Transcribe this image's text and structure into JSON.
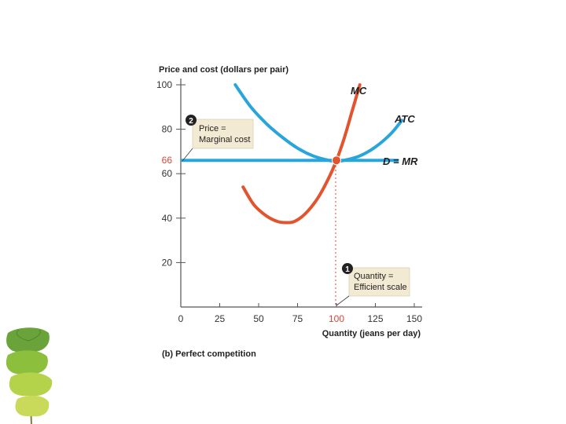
{
  "chart_data": {
    "type": "line",
    "ylabel": "Price and cost (dollars per pair)",
    "xlabel": "Quantity (jeans per day)",
    "caption": "(b) Perfect competition",
    "xlim": [
      0,
      150
    ],
    "ylim": [
      0,
      100
    ],
    "x_ticks": [
      "0",
      "25",
      "50",
      "75",
      "100",
      "125",
      "150"
    ],
    "y_ticks": [
      "20",
      "40",
      "60",
      "80",
      "100"
    ],
    "highlight_y": "66",
    "highlight_x": "100",
    "grid": false,
    "colors": {
      "atc": "#2aa5dc",
      "dmr": "#2aa5dc",
      "mc": "#e2532e",
      "highlight": "#d9463a",
      "callout_bg": "#f3ead4",
      "axis": "#555555"
    },
    "series": [
      {
        "name": "ATC",
        "x": [
          35,
          45,
          55,
          65,
          75,
          85,
          95,
          100,
          105,
          115,
          125,
          135,
          142
        ],
        "y": [
          100,
          90,
          82.5,
          76.5,
          71.5,
          68,
          66,
          65.5,
          66,
          68,
          72,
          78,
          84
        ]
      },
      {
        "name": "D = MR",
        "x": [
          0,
          140
        ],
        "y": [
          66,
          66
        ]
      },
      {
        "name": "MC",
        "x": [
          40,
          47,
          55,
          62,
          67,
          73,
          80,
          88,
          95,
          100,
          105,
          110,
          115
        ],
        "y": [
          54,
          46,
          41,
          38.5,
          38,
          38.5,
          42,
          49,
          58,
          66,
          76,
          88,
          100
        ]
      }
    ],
    "equilibrium": {
      "x": 100,
      "y": 66
    },
    "annotations": [
      {
        "number": "2",
        "lines": [
          "Price =",
          "Marginal cost"
        ]
      },
      {
        "number": "1",
        "lines": [
          "Quantity =",
          "Efficient scale"
        ]
      }
    ]
  }
}
